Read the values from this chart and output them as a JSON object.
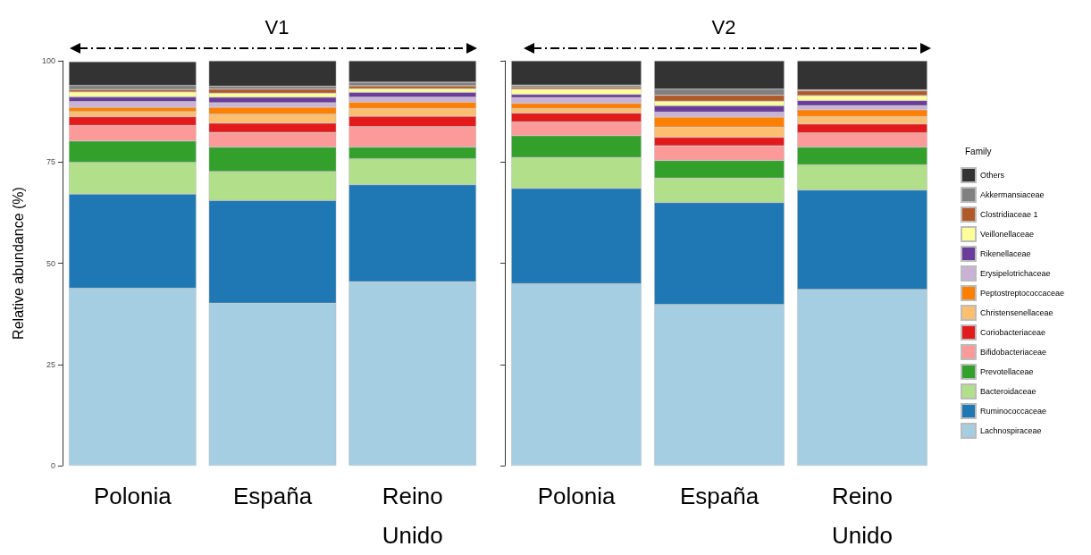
{
  "chart_data": [
    {
      "type": "bar",
      "stacked": true,
      "title": "V1",
      "ylabel": "Relative abundance (%)",
      "categories": [
        "Polonia",
        "España",
        "Reino Unido"
      ],
      "ylim": [
        0,
        100
      ],
      "yticks": [
        0,
        25,
        50,
        75,
        100
      ],
      "series": [
        {
          "color": "#a6cee3",
          "values": [
            43.8,
            40.1,
            45.4
          ]
        },
        {
          "color": "#1f78b4",
          "values": [
            23.3,
            25.4,
            24.0
          ]
        },
        {
          "color": "#b2df8a",
          "values": [
            7.8,
            7.1,
            6.4
          ]
        },
        {
          "color": "#33a02c",
          "values": [
            5.3,
            6.1,
            2.9
          ]
        },
        {
          "color": "#fb9a99",
          "values": [
            3.8,
            3.6,
            5.0
          ]
        },
        {
          "color": "#e31a1c",
          "values": [
            2.2,
            2.3,
            2.6
          ]
        },
        {
          "color": "#fdbf6f",
          "values": [
            1.2,
            2.2,
            1.9
          ]
        },
        {
          "color": "#ff7f00",
          "values": [
            1.1,
            1.7,
            1.6
          ]
        },
        {
          "color": "#cab2d6",
          "values": [
            1.4,
            1.1,
            1.2
          ]
        },
        {
          "color": "#6a3d9a",
          "values": [
            1.2,
            1.4,
            1.2
          ]
        },
        {
          "color": "#ffff99",
          "values": [
            1.2,
            1.0,
            0.9
          ]
        },
        {
          "color": "#b15928",
          "values": [
            0.6,
            1.0,
            0.7
          ]
        },
        {
          "color": "#808080",
          "values": [
            1.0,
            0.7,
            0.9
          ]
        },
        {
          "color": "#333333",
          "values": [
            5.9,
            6.3,
            5.3
          ]
        }
      ]
    },
    {
      "type": "bar",
      "stacked": true,
      "title": "V2",
      "categories": [
        "Polonia",
        "España",
        "Reino Unido"
      ],
      "ylim": [
        0,
        100
      ],
      "yticks": [
        0,
        25,
        50,
        75,
        100
      ],
      "tick_labels": "x",
      "legend": "right",
      "legend_title": "Family",
      "series": [
        {
          "name": "Lachnospiraceae",
          "color": "#a6cee3",
          "values": [
            44.9,
            39.8,
            43.5
          ]
        },
        {
          "name": "Ruminococcaceae",
          "color": "#1f78b4",
          "values": [
            23.6,
            25.2,
            24.6
          ]
        },
        {
          "name": "Bacteroidaceae",
          "color": "#b2df8a",
          "values": [
            7.6,
            6.0,
            6.2
          ]
        },
        {
          "name": "Prevotellaceae",
          "color": "#33a02c",
          "values": [
            5.4,
            4.4,
            4.4
          ]
        },
        {
          "name": "Bifidobacteriaceae",
          "color": "#fb9a99",
          "values": [
            3.4,
            3.6,
            3.5
          ]
        },
        {
          "name": "Coriobacteriaceae",
          "color": "#e31a1c",
          "values": [
            2.2,
            2.1,
            2.2
          ]
        },
        {
          "name": "Christensenellaceae",
          "color": "#fdbf6f",
          "values": [
            1.1,
            2.5,
            1.8
          ]
        },
        {
          "name": "Peptostreptococcaceae",
          "color": "#ff7f00",
          "values": [
            1.3,
            2.5,
            1.7
          ]
        },
        {
          "name": "Erysipelotrichaceae",
          "color": "#cab2d6",
          "values": [
            1.4,
            1.2,
            1.0
          ]
        },
        {
          "name": "Rikenellaceae",
          "color": "#6a3d9a",
          "values": [
            0.8,
            1.6,
            1.3
          ]
        },
        {
          "name": "Veillonellaceae",
          "color": "#ffff99",
          "values": [
            1.3,
            1.1,
            1.2
          ]
        },
        {
          "name": "Clostridiaceae 1",
          "color": "#b15928",
          "values": [
            0.5,
            1.5,
            1.2
          ]
        },
        {
          "name": "Akkermansiaceae",
          "color": "#808080",
          "values": [
            0.5,
            1.5,
            0.2
          ]
        },
        {
          "name": "Others",
          "color": "#333333",
          "values": [
            6.0,
            7.0,
            7.2
          ]
        }
      ]
    }
  ]
}
